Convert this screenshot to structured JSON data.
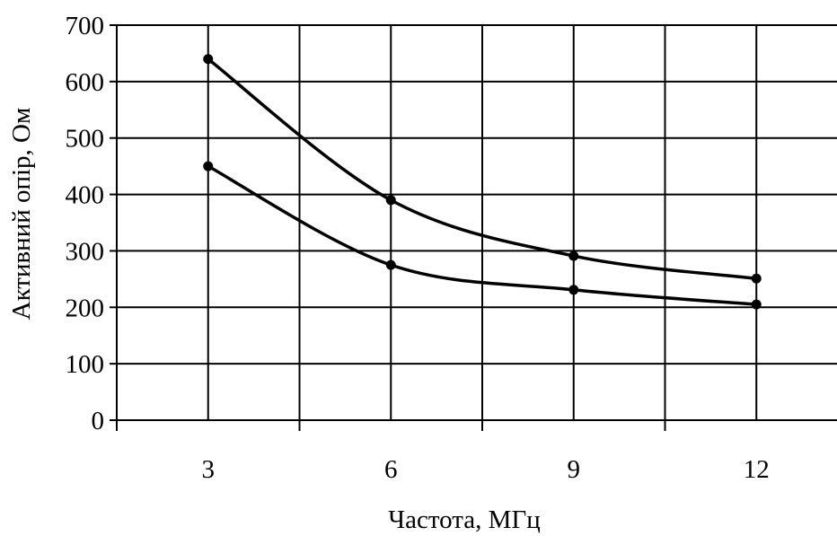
{
  "chart_data": {
    "type": "line",
    "title": "",
    "xlabel": "Частота, МГц",
    "ylabel": "Активний опір, Ом",
    "x": [
      3,
      6,
      9,
      12
    ],
    "x_tick_labels": [
      "3",
      "6",
      "9",
      "12"
    ],
    "y_tick_labels": [
      "0",
      "100",
      "200",
      "300",
      "400",
      "500",
      "600",
      "700"
    ],
    "xlim": [
      1.5,
      13.5
    ],
    "ylim": [
      0,
      700
    ],
    "grid": true,
    "legend": "none",
    "series": [
      {
        "values": [
          640,
          390,
          291,
          251
        ]
      },
      {
        "values": [
          450,
          275,
          231,
          205
        ]
      }
    ],
    "colors": {
      "line": "#000000",
      "grid": "#000000",
      "background": "#ffffff"
    }
  }
}
